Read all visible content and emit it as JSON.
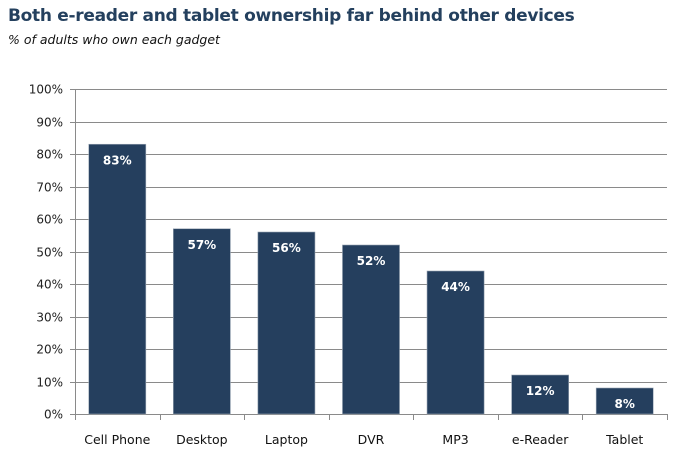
{
  "chart_data": {
    "type": "bar",
    "title": "Both e-reader and tablet ownership far behind other devices",
    "subtitle": "% of adults who own each gadget",
    "categories": [
      "Cell Phone",
      "Desktop",
      "Laptop",
      "DVR",
      "MP3",
      "e-Reader",
      "Tablet"
    ],
    "values": [
      83,
      57,
      56,
      52,
      44,
      12,
      8
    ],
    "data_labels": [
      "83%",
      "57%",
      "56%",
      "52%",
      "44%",
      "12%",
      "8%"
    ],
    "xlabel": "",
    "ylabel": "",
    "ylim": [
      0,
      100
    ],
    "yticks": [
      0,
      10,
      20,
      30,
      40,
      50,
      60,
      70,
      80,
      90,
      100
    ],
    "ytick_labels": [
      "0%",
      "10%",
      "20%",
      "30%",
      "40%",
      "50%",
      "60%",
      "70%",
      "80%",
      "90%",
      "100%"
    ],
    "grid": true,
    "legend": "none",
    "bar_color": "#253f5e",
    "grid_color": "#8a8a8a"
  }
}
